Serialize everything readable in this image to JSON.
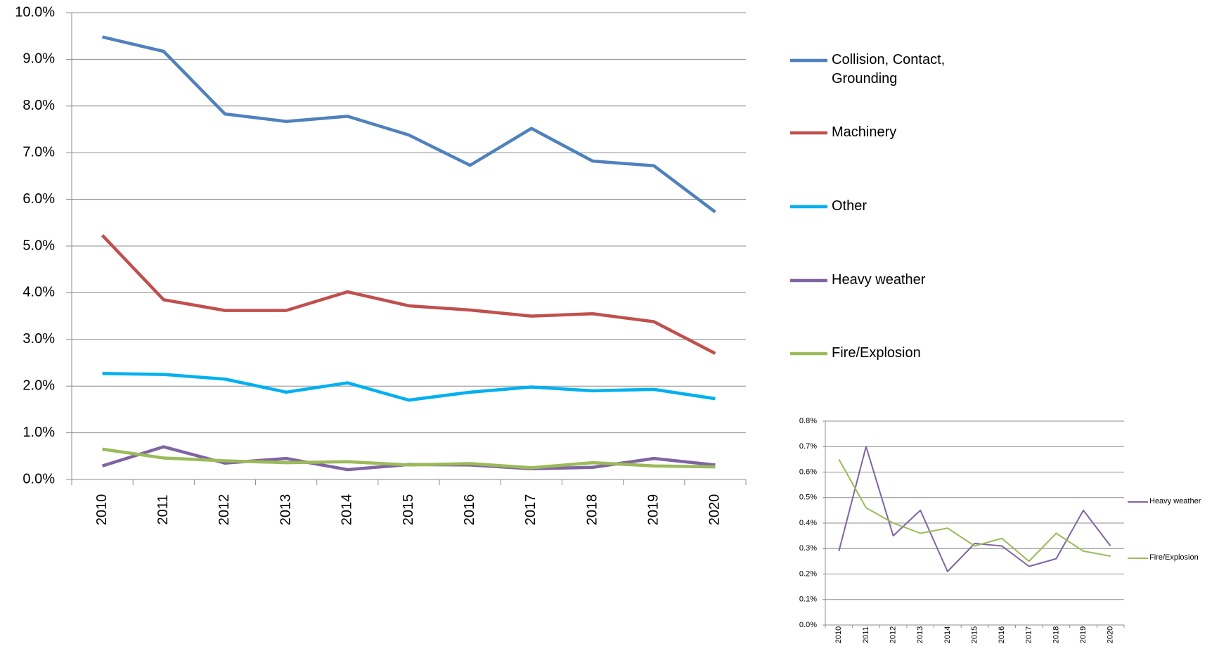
{
  "chart_data": [
    {
      "type": "line",
      "categories": [
        "2010",
        "2011",
        "2012",
        "2013",
        "2014",
        "2015",
        "2016",
        "2017",
        "2018",
        "2019",
        "2020"
      ],
      "series": [
        {
          "name": "Collision, Contact, Grounding",
          "color": "#4f81bd",
          "values": [
            9.48,
            9.17,
            7.83,
            7.67,
            7.78,
            7.38,
            6.73,
            7.52,
            6.82,
            6.72,
            5.73
          ]
        },
        {
          "name": "Machinery",
          "color": "#c0504d",
          "values": [
            5.23,
            3.85,
            3.62,
            3.62,
            4.02,
            3.72,
            3.63,
            3.5,
            3.55,
            3.38,
            2.7
          ]
        },
        {
          "name": "Other",
          "color": "#00b0f0",
          "values": [
            2.27,
            2.25,
            2.15,
            1.87,
            2.07,
            1.7,
            1.87,
            1.98,
            1.9,
            1.93,
            1.73
          ]
        },
        {
          "name": "Heavy weather",
          "color": "#8064a2",
          "values": [
            0.29,
            0.7,
            0.35,
            0.45,
            0.21,
            0.32,
            0.31,
            0.23,
            0.26,
            0.45,
            0.31
          ]
        },
        {
          "name": "Fire/Explosion",
          "color": "#9bbb59",
          "values": [
            0.65,
            0.46,
            0.4,
            0.36,
            0.38,
            0.31,
            0.34,
            0.25,
            0.36,
            0.29,
            0.27
          ]
        }
      ],
      "ylim": [
        0,
        10
      ],
      "yticks": [
        {
          "value": 0,
          "label": "0.0%"
        },
        {
          "value": 1,
          "label": "1.0%"
        },
        {
          "value": 2,
          "label": "2.0%"
        },
        {
          "value": 3,
          "label": "3.0%"
        },
        {
          "value": 4,
          "label": "4.0%"
        },
        {
          "value": 5,
          "label": "5.0%"
        },
        {
          "value": 6,
          "label": "6.0%"
        },
        {
          "value": 7,
          "label": "7.0%"
        },
        {
          "value": 8,
          "label": "8.0%"
        },
        {
          "value": 9,
          "label": "9.0%"
        },
        {
          "value": 10,
          "label": "10.0%"
        }
      ],
      "grid": true,
      "legend": "right"
    },
    {
      "type": "line",
      "categories": [
        "2010",
        "2011",
        "2012",
        "2013",
        "2014",
        "2015",
        "2016",
        "2017",
        "2018",
        "2019",
        "2020"
      ],
      "series": [
        {
          "name": "Heavy weather",
          "color": "#8064a2",
          "values": [
            0.29,
            0.7,
            0.35,
            0.45,
            0.21,
            0.32,
            0.31,
            0.23,
            0.26,
            0.45,
            0.31
          ]
        },
        {
          "name": "Fire/Explosion",
          "color": "#9bbb59",
          "values": [
            0.65,
            0.46,
            0.4,
            0.36,
            0.38,
            0.31,
            0.34,
            0.25,
            0.36,
            0.29,
            0.27
          ]
        }
      ],
      "ylim": [
        0,
        0.8
      ],
      "yticks": [
        {
          "value": 0,
          "label": "0.0%"
        },
        {
          "value": 0.1,
          "label": "0.1%"
        },
        {
          "value": 0.2,
          "label": "0.2%"
        },
        {
          "value": 0.3,
          "label": "0.3%"
        },
        {
          "value": 0.4,
          "label": "0.4%"
        },
        {
          "value": 0.5,
          "label": "0.5%"
        },
        {
          "value": 0.6,
          "label": "0.6%"
        },
        {
          "value": 0.7,
          "label": "0.7%"
        },
        {
          "value": 0.8,
          "label": "0.8%"
        }
      ],
      "grid": true,
      "legend": "right"
    }
  ]
}
